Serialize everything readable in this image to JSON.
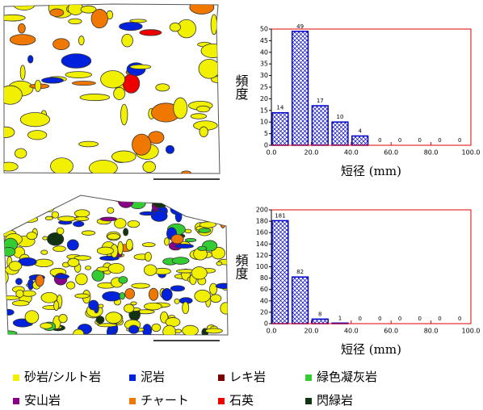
{
  "chart_data": [
    {
      "type": "histogram",
      "ylabel": "頻度",
      "xlabel": "短径 (mm)",
      "bins": [
        0,
        10,
        20,
        30,
        40,
        50,
        60,
        70,
        80,
        90,
        100
      ],
      "values": [
        14,
        49,
        17,
        10,
        4,
        0,
        0,
        0,
        0,
        0
      ],
      "color": "#0000cc",
      "frame_color": "#e00000",
      "xlim": [
        0,
        100
      ],
      "ylim": [
        0,
        50
      ],
      "xticks": [
        {
          "value": 0,
          "label": "0.0"
        },
        {
          "value": 20,
          "label": "20.0"
        },
        {
          "value": 40,
          "label": "40.0"
        },
        {
          "value": 60,
          "label": "60.0"
        },
        {
          "value": 80,
          "label": "80.0"
        },
        {
          "value": 100,
          "label": "100.0"
        }
      ],
      "yticks": [
        0,
        5,
        10,
        15,
        20,
        25,
        30,
        35,
        40,
        45,
        50
      ]
    },
    {
      "type": "histogram",
      "ylabel": "頻度",
      "xlabel": "短径 (mm)",
      "bins": [
        0,
        10,
        20,
        30,
        40,
        50,
        60,
        70,
        80,
        90,
        100
      ],
      "values": [
        181,
        82,
        8,
        1,
        0,
        0,
        0,
        0,
        0,
        0
      ],
      "color": "#0000cc",
      "frame_color": "#e00000",
      "xlim": [
        0,
        100
      ],
      "ylim": [
        0,
        200
      ],
      "xticks": [
        {
          "value": 0,
          "label": "0.0"
        },
        {
          "value": 20,
          "label": "20.0"
        },
        {
          "value": 40,
          "label": "40.0"
        },
        {
          "value": 60,
          "label": "60.0"
        },
        {
          "value": 80,
          "label": "80.0"
        },
        {
          "value": 100,
          "label": "100.0"
        }
      ],
      "yticks": [
        0,
        20,
        40,
        60,
        80,
        100,
        120,
        140,
        160,
        180,
        200
      ]
    }
  ],
  "legend": [
    {
      "name": "砂岩/シルト岩",
      "color": "#f0f000"
    },
    {
      "name": "泥岩",
      "color": "#0022dd"
    },
    {
      "name": "レキ岩",
      "color": "#7a0000"
    },
    {
      "name": "緑色凝灰岩",
      "color": "#33cc33"
    },
    {
      "name": "安山岩",
      "color": "#880088"
    },
    {
      "name": "チャート",
      "color": "#f07800"
    },
    {
      "name": "石英",
      "color": "#ee0000"
    },
    {
      "name": "閃緑岩",
      "color": "#113311"
    }
  ]
}
